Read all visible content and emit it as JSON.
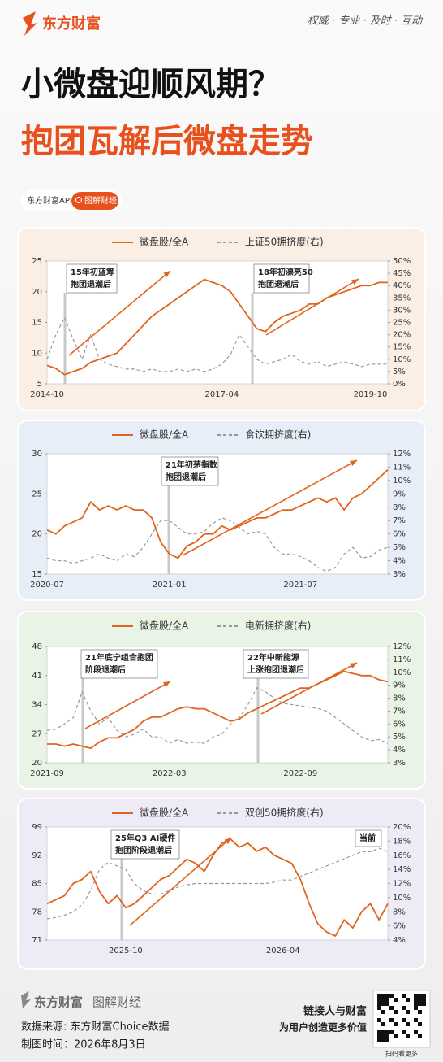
{
  "header": {
    "brand": "东方财富",
    "slogan": "权威 · 专业 · 及时 · 互动",
    "title_line1": "小微盘迎顺风期？",
    "title_line2": "抱团瓦解后微盘走势",
    "app": "东方财富APP",
    "column": "图解财经"
  },
  "chart_data": [
    {
      "type": "line",
      "categories": [
        "2014-10",
        null,
        null,
        null,
        null,
        null,
        null,
        null,
        null,
        null,
        null,
        null,
        null,
        null,
        null,
        null,
        null,
        null,
        null,
        null,
        "2017-04",
        null,
        null,
        null,
        null,
        null,
        null,
        null,
        null,
        null,
        null,
        null,
        null,
        null,
        null,
        null,
        null,
        "2019-10",
        null,
        null
      ],
      "series": [
        {
          "name": "微盘股/全A",
          "color": "#e0641c",
          "values": [
            8,
            7.5,
            6.5,
            7,
            7.5,
            8.5,
            9,
            9.5,
            10,
            11.5,
            13,
            14.5,
            16,
            17,
            18,
            19,
            20,
            21,
            22,
            21.5,
            21,
            20,
            18,
            16,
            14,
            13.5,
            15,
            16,
            16.5,
            17,
            18,
            18,
            19,
            19.5,
            20,
            20.5,
            21,
            21,
            21.5,
            21.5
          ]
        },
        {
          "name": "上证50拥挤度(右)",
          "color": "#999999",
          "style": "dashed",
          "axis": "y2",
          "values": [
            10,
            20,
            27,
            18,
            10,
            20,
            10,
            8,
            7,
            6,
            6,
            5,
            6,
            5,
            5,
            6,
            5,
            6,
            5,
            6,
            8,
            12,
            20,
            15,
            10,
            8,
            9,
            10,
            12,
            9,
            8,
            9,
            7,
            8,
            9,
            8,
            7,
            8,
            8,
            8
          ]
        }
      ],
      "ylim": [
        5,
        25
      ],
      "yticks": [
        5,
        10,
        15,
        20,
        25
      ],
      "y2lim": [
        0,
        50
      ],
      "y2ticks": [
        {
          "value": 0,
          "label": "0%"
        },
        {
          "value": 5,
          "label": "5%"
        },
        {
          "value": 10,
          "label": "10%"
        },
        {
          "value": 15,
          "label": "15%"
        },
        {
          "value": 20,
          "label": "20%"
        },
        {
          "value": 25,
          "label": "25%"
        },
        {
          "value": 30,
          "label": "30%"
        },
        {
          "value": 35,
          "label": "35%"
        },
        {
          "value": 40,
          "label": "40%"
        },
        {
          "value": 45,
          "label": "45%"
        },
        {
          "value": 50,
          "label": "50%"
        }
      ],
      "annotations": [
        [
          "15年初蓝筹",
          "抱团退潮后"
        ],
        [
          "18年初漂亮50",
          "抱团退潮后"
        ]
      ]
    },
    {
      "type": "line",
      "categories": [
        "2020-07",
        null,
        null,
        null,
        null,
        null,
        null,
        null,
        null,
        null,
        null,
        null,
        null,
        null,
        "2021-01",
        null,
        null,
        null,
        null,
        null,
        null,
        null,
        null,
        null,
        null,
        null,
        null,
        null,
        null,
        "2021-07",
        null,
        null,
        null,
        null,
        null,
        null,
        null,
        null,
        null,
        null
      ],
      "series": [
        {
          "name": "微盘股/全A",
          "color": "#e0641c",
          "values": [
            20.5,
            20,
            21,
            21.5,
            22,
            24,
            23,
            23.5,
            23,
            23.5,
            23,
            23,
            22,
            19,
            17.5,
            17,
            18.5,
            19,
            20,
            20,
            21,
            20.5,
            21,
            21.5,
            22,
            22,
            22.5,
            23,
            23,
            23.5,
            24,
            24.5,
            24,
            24.5,
            23,
            24.5,
            25,
            26,
            27,
            28
          ]
        },
        {
          "name": "食饮拥挤度(右)",
          "color": "#999999",
          "style": "dashed",
          "axis": "y2",
          "values": [
            4.2,
            4,
            4,
            3.8,
            4,
            4.2,
            4.5,
            4.2,
            4,
            4.5,
            4.3,
            5,
            6,
            7,
            7,
            6.5,
            6,
            6,
            6.2,
            6.8,
            7.2,
            7,
            6.5,
            6,
            6.2,
            6,
            5,
            4.5,
            4.5,
            4.3,
            4,
            3.5,
            3.2,
            3.5,
            4.5,
            5,
            4.2,
            4.3,
            4.8,
            5
          ]
        }
      ],
      "ylim": [
        15,
        30
      ],
      "yticks": [
        15,
        20,
        25,
        30
      ],
      "y2lim": [
        3,
        12
      ],
      "y2ticks": [
        {
          "value": 3,
          "label": "3%"
        },
        {
          "value": 4,
          "label": "4%"
        },
        {
          "value": 5,
          "label": "5%"
        },
        {
          "value": 6,
          "label": "6%"
        },
        {
          "value": 7,
          "label": "7%"
        },
        {
          "value": 8,
          "label": "8%"
        },
        {
          "value": 9,
          "label": "9%"
        },
        {
          "value": 10,
          "label": "10%"
        },
        {
          "value": 11,
          "label": "11%"
        },
        {
          "value": 12,
          "label": "12%"
        }
      ],
      "annotations": [
        [
          "21年初茅指数",
          "抱团退潮后"
        ]
      ]
    },
    {
      "type": "line",
      "categories": [
        "2021-09",
        null,
        null,
        null,
        null,
        null,
        null,
        null,
        null,
        null,
        null,
        null,
        null,
        null,
        "2022-03",
        null,
        null,
        null,
        null,
        null,
        null,
        null,
        null,
        null,
        null,
        null,
        null,
        null,
        null,
        "2022-09",
        null,
        null,
        null,
        null,
        null,
        null,
        null,
        null,
        null,
        null
      ],
      "series": [
        {
          "name": "微盘股/全A",
          "color": "#e0641c",
          "values": [
            24.5,
            24.5,
            24,
            24.5,
            24,
            23.5,
            25,
            26,
            26,
            27,
            28,
            30,
            31,
            31,
            32,
            33,
            33.5,
            33,
            33,
            32,
            31,
            30,
            30.5,
            32,
            33,
            34,
            35,
            36,
            37,
            38,
            38,
            39,
            40,
            41,
            42,
            41.5,
            41,
            41,
            40,
            39.5
          ]
        },
        {
          "name": "电新拥挤度(右)",
          "color": "#999999",
          "style": "dashed",
          "axis": "y2",
          "values": [
            5.5,
            5.6,
            6,
            6.5,
            8.5,
            7,
            6,
            6.5,
            5.5,
            5,
            5.2,
            5.6,
            5,
            5,
            4.5,
            4.8,
            4.5,
            4.6,
            4.5,
            5,
            5.2,
            6,
            6.5,
            7.5,
            8.8,
            8.5,
            8,
            7.6,
            7.5,
            7.4,
            7.3,
            7.2,
            7,
            6.5,
            6,
            5.5,
            5,
            4.7,
            4.8,
            4.5
          ]
        }
      ],
      "ylim": [
        20,
        48
      ],
      "yticks": [
        20,
        27,
        34,
        41,
        48
      ],
      "y2lim": [
        3,
        12
      ],
      "y2ticks": [
        {
          "value": 3,
          "label": "3%"
        },
        {
          "value": 4,
          "label": "4%"
        },
        {
          "value": 5,
          "label": "5%"
        },
        {
          "value": 6,
          "label": "6%"
        },
        {
          "value": 7,
          "label": "7%"
        },
        {
          "value": 8,
          "label": "8%"
        },
        {
          "value": 9,
          "label": "9%"
        },
        {
          "value": 10,
          "label": "10%"
        },
        {
          "value": 11,
          "label": "11%"
        },
        {
          "value": 12,
          "label": "12%"
        }
      ],
      "annotations": [
        [
          "21年底宁组合抱团",
          "阶段退潮后"
        ],
        [
          "22年中新能源",
          "上涨抱团退潮后"
        ]
      ]
    },
    {
      "type": "line",
      "categories": [
        null,
        null,
        null,
        null,
        null,
        null,
        null,
        null,
        null,
        "2025-10",
        null,
        null,
        null,
        null,
        null,
        null,
        null,
        null,
        null,
        null,
        null,
        null,
        null,
        null,
        null,
        null,
        null,
        "2026-04",
        null,
        null,
        null,
        null,
        null,
        null,
        null,
        null,
        null,
        null,
        null,
        null
      ],
      "series": [
        {
          "name": "微盘股/全A",
          "color": "#e0641c",
          "values": [
            80,
            81,
            82,
            85,
            86,
            88,
            83,
            80,
            82,
            79,
            80,
            82,
            84,
            86,
            87,
            89,
            91,
            90,
            88,
            92,
            95,
            96,
            94,
            95,
            93,
            94,
            92,
            91,
            90,
            86,
            80,
            75,
            73,
            72,
            76,
            74,
            78,
            80,
            76,
            80
          ]
        },
        {
          "name": "双创50拥挤度(右)",
          "color": "#999999",
          "style": "dashed",
          "axis": "y2",
          "values": [
            7,
            7.2,
            7.5,
            8,
            9,
            11,
            14,
            15,
            14.5,
            14,
            12,
            11,
            10.5,
            10.5,
            11,
            11.5,
            11.8,
            12,
            12,
            12,
            12,
            12,
            12,
            12,
            12,
            12,
            12.2,
            12.5,
            12.5,
            13,
            13.5,
            14,
            14.5,
            15,
            15.5,
            16,
            16.5,
            16.5,
            17,
            16.5
          ]
        }
      ],
      "ylim": [
        71,
        99
      ],
      "yticks": [
        71,
        78,
        85,
        92,
        99
      ],
      "y2lim": [
        4,
        20
      ],
      "y2ticks": [
        {
          "value": 4,
          "label": "4%"
        },
        {
          "value": 6,
          "label": "6%"
        },
        {
          "value": 8,
          "label": "8%"
        },
        {
          "value": 10,
          "label": "10%"
        },
        {
          "value": 12,
          "label": "12%"
        },
        {
          "value": 14,
          "label": "14%"
        },
        {
          "value": 16,
          "label": "16%"
        },
        {
          "value": 18,
          "label": "18%"
        },
        {
          "value": 20,
          "label": "20%"
        }
      ],
      "annotations": [
        [
          "25年Q3 AI硬件",
          "抱团阶段退潮后"
        ],
        [
          "当前"
        ]
      ]
    }
  ],
  "footer": {
    "brand": "东方财富",
    "column": "图解财经",
    "source": "数据来源: 东方财富Choice数据",
    "date": "制图时间：2026年8月3日",
    "slogan1": "链接人与财富",
    "slogan2": "为用户创造更多价值",
    "qr_caption": "扫码看更多"
  }
}
